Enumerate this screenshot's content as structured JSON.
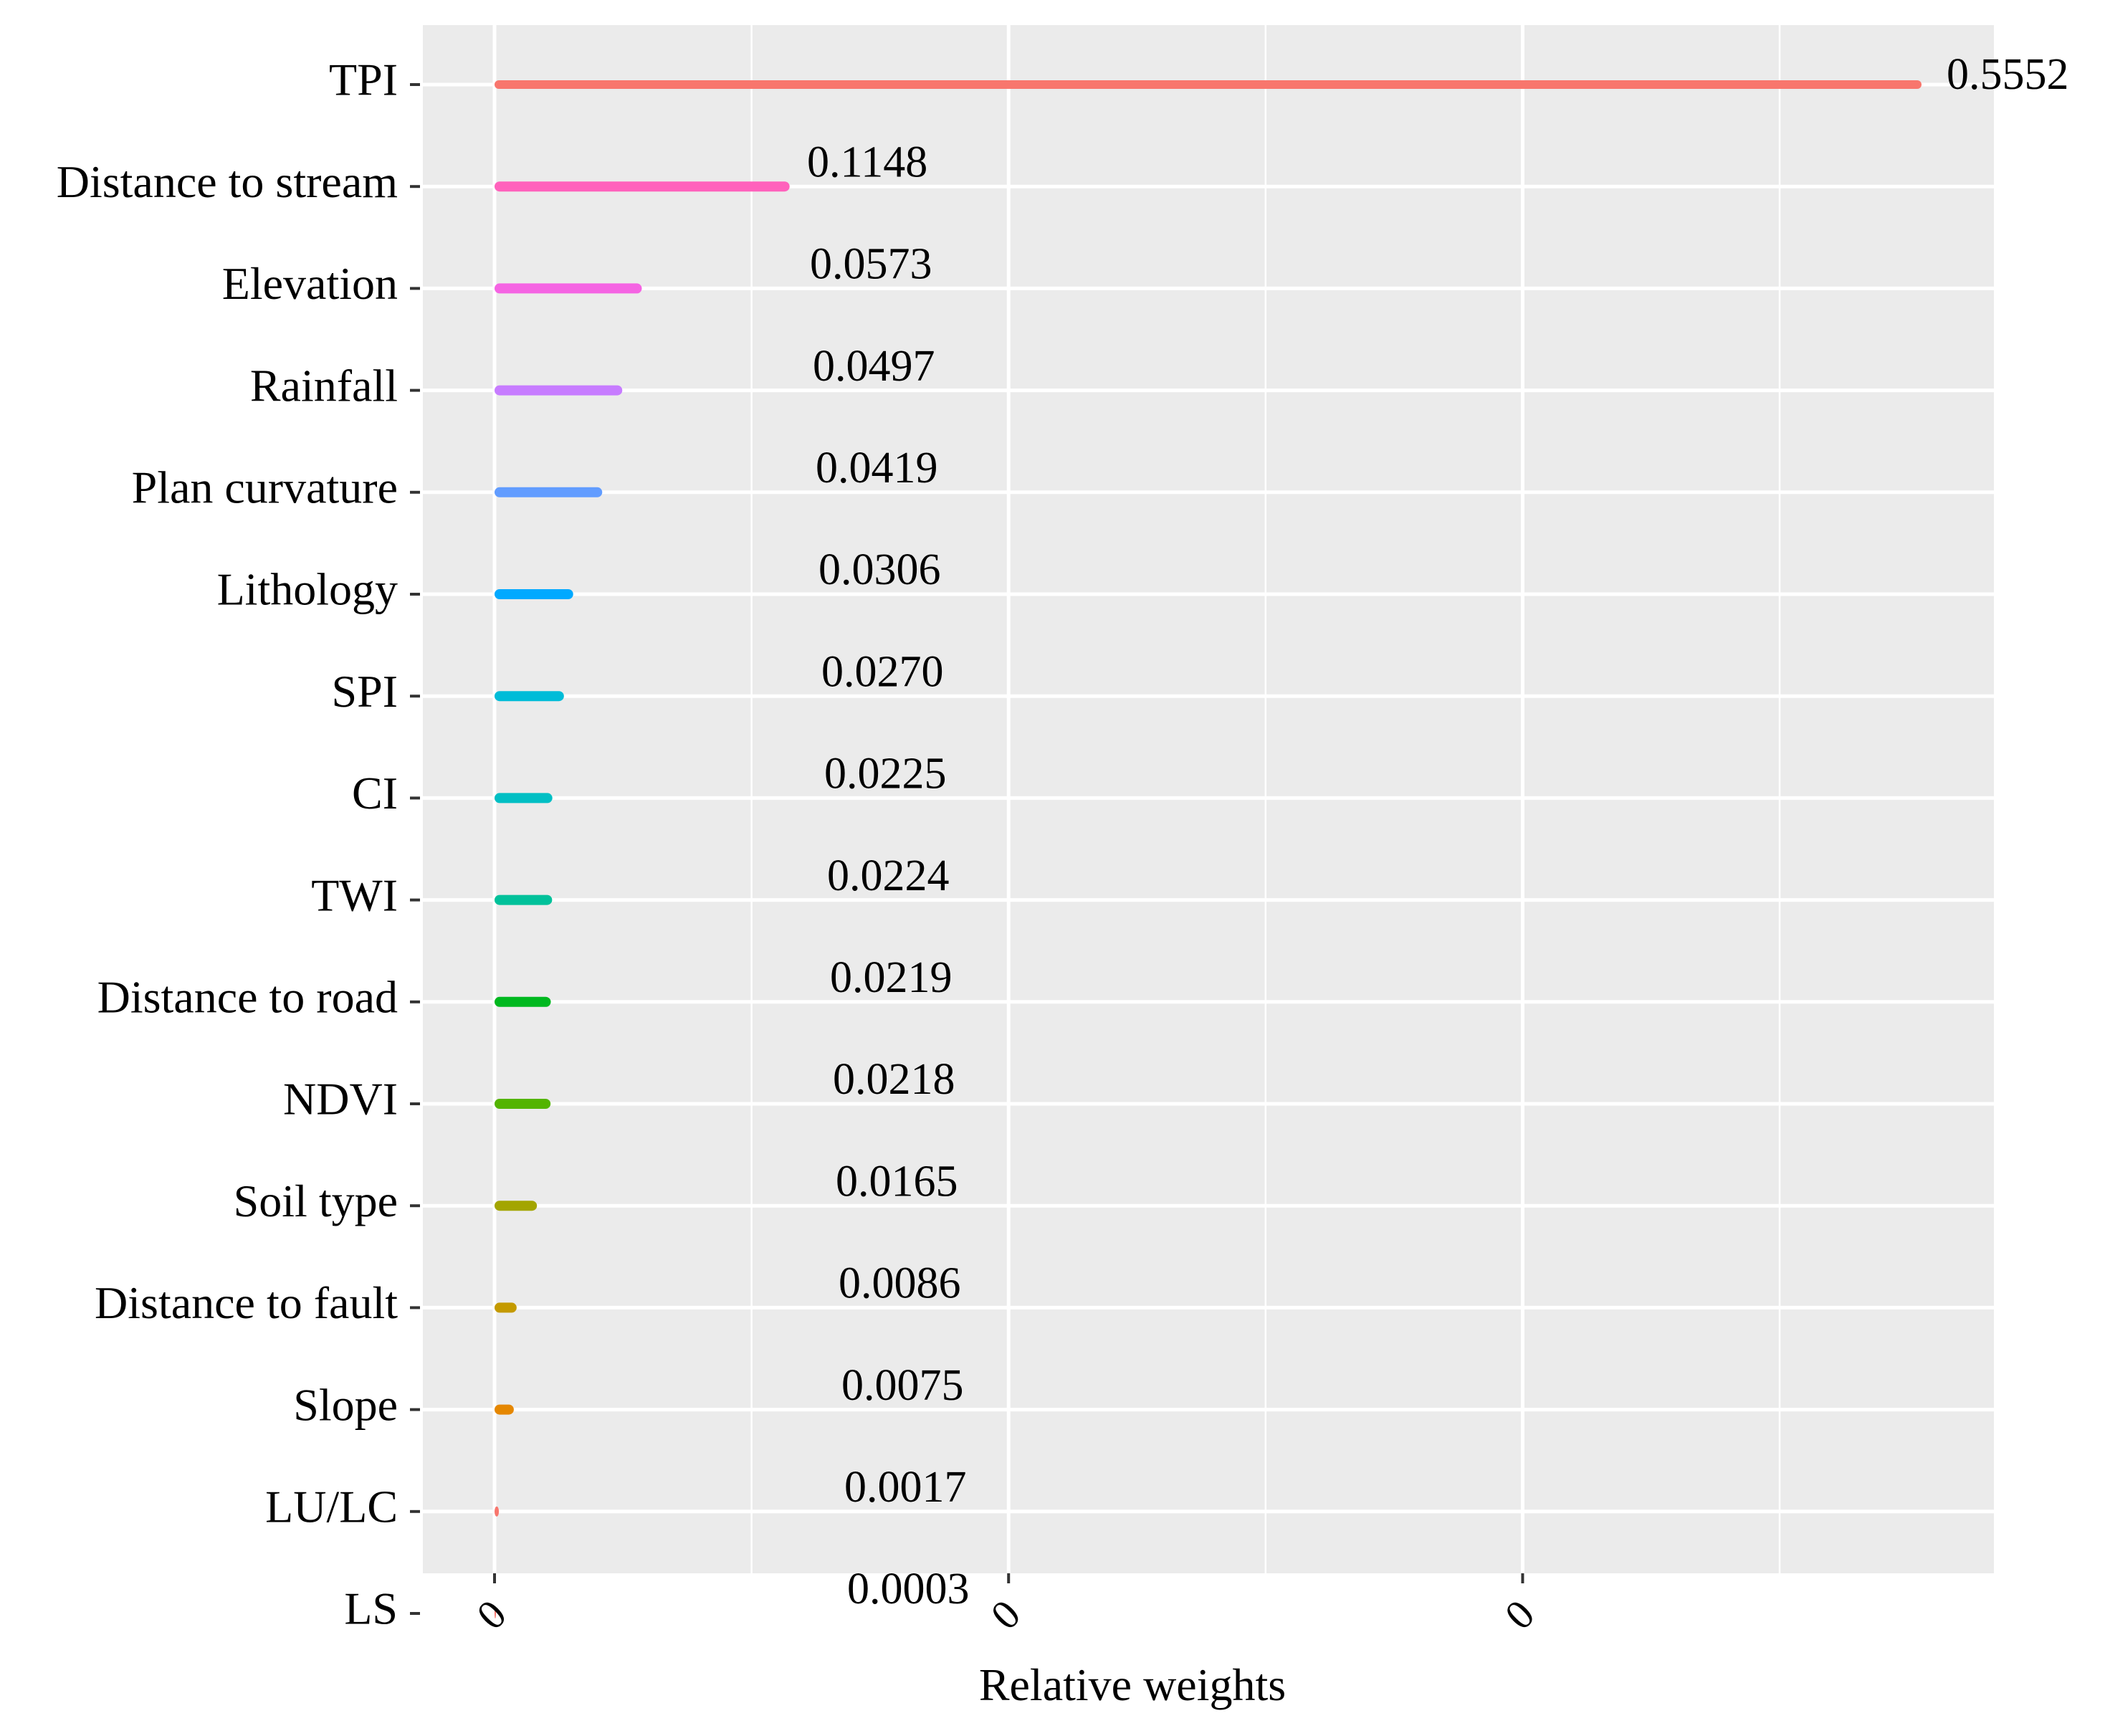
{
  "chart_data": {
    "type": "bar",
    "orientation": "horizontal",
    "categories": [
      "TPI",
      "Distance to stream",
      "Elevation",
      "Rainfall",
      "Plan curvature",
      "Lithology",
      "SPI",
      "CI",
      "TWI",
      "Distance to road",
      "NDVI",
      "Soil type",
      "Distance to fault",
      "Slope",
      "LU/LC",
      "LS"
    ],
    "values": [
      0.5552,
      0.1148,
      0.0573,
      0.0497,
      0.0419,
      0.0306,
      0.027,
      0.0225,
      0.0224,
      0.0219,
      0.0218,
      0.0165,
      0.0086,
      0.0075,
      0.0017,
      0.0003
    ],
    "value_labels": [
      "0.5552",
      "0.1148",
      "0.0573",
      "0.0497",
      "0.0419",
      "0.0306",
      "0.0270",
      "0.0225",
      "0.0224",
      "0.0219",
      "0.0218",
      "0.0165",
      "0.0086",
      "0.0075",
      "0.0017",
      "0.0003"
    ],
    "colors": [
      "#F8766D",
      "#FF62BC",
      "#F564E3",
      "#C77CFF",
      "#619CFF",
      "#00A9FF",
      "#00BCD8",
      "#00BFC4",
      "#00C19A",
      "#00B81F",
      "#53B400",
      "#A3A500",
      "#C49A00",
      "#E58700",
      "#F8766D",
      "#F8766D"
    ],
    "xlabel": "Relative weights",
    "ylabel": "",
    "x_tick_labels": [
      "0",
      "0",
      "0"
    ],
    "x_ticks": [
      0,
      0.2,
      0.4
    ],
    "xlim": [
      -0.028,
      0.583
    ],
    "grid": true,
    "legend": "none"
  }
}
